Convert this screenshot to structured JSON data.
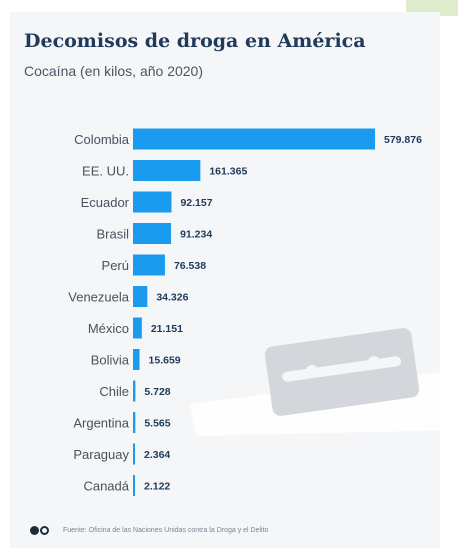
{
  "chart_data": {
    "type": "bar",
    "orientation": "horizontal",
    "title": "Decomisos de droga en América",
    "subtitle": "Cocaína (en kilos, año 2020)",
    "categories": [
      "Colombia",
      "EE. UU.",
      "Ecuador",
      "Brasil",
      "Perú",
      "Venezuela",
      "México",
      "Bolivia",
      "Chile",
      "Argentina",
      "Paraguay",
      "Canadá"
    ],
    "values": [
      579876,
      161365,
      92157,
      91234,
      76538,
      34326,
      21151,
      15659,
      5728,
      5565,
      2364,
      2122
    ],
    "value_labels": [
      "579.876",
      "161.365",
      "92.157",
      "91.234",
      "76.538",
      "34.326",
      "21.151",
      "15.659",
      "5.728",
      "5.565",
      "2.364",
      "2.122"
    ],
    "bar_color": "#1a9bef",
    "xlim": [
      0,
      579876
    ],
    "grid": false,
    "legend": "none"
  },
  "footer": {
    "source": "Fuente: Oficina de las Naciones Unidas contra la Droga y el Delito"
  }
}
